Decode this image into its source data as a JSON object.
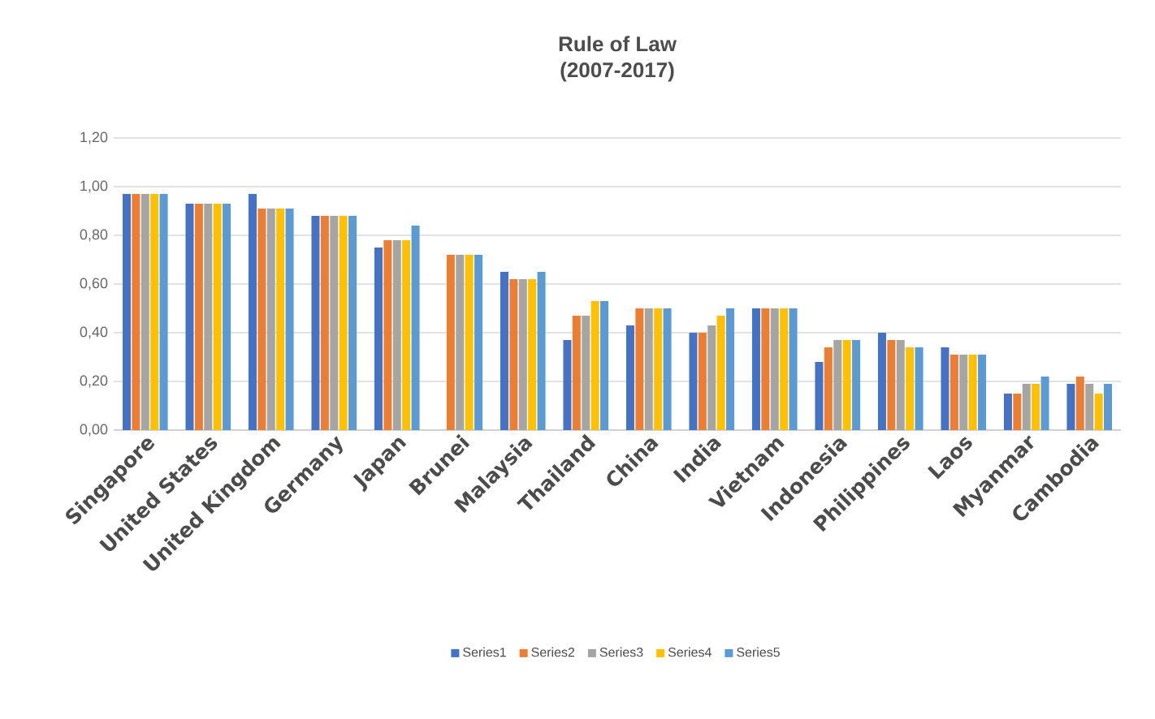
{
  "chart_data": {
    "type": "bar",
    "title": "Rule of Law",
    "subtitle": "(2007-2017)",
    "categories": [
      "Singapore",
      "United States",
      "United Kingdom",
      "Germany",
      "Japan",
      "Brunei",
      "Malaysia",
      "Thailand",
      "China",
      "India",
      "Vietnam",
      "Indonesia",
      "Philippines",
      "Laos",
      "Myanmar",
      "Cambodia"
    ],
    "series": [
      {
        "name": "Series1",
        "color": "#4472c4",
        "values": [
          0.97,
          0.93,
          0.97,
          0.88,
          0.75,
          null,
          0.65,
          0.37,
          0.43,
          0.4,
          0.5,
          0.28,
          0.4,
          0.34,
          0.15,
          0.19
        ]
      },
      {
        "name": "Series2",
        "color": "#ed7d31",
        "values": [
          0.97,
          0.93,
          0.91,
          0.88,
          0.78,
          0.72,
          0.62,
          0.47,
          0.5,
          0.4,
          0.5,
          0.34,
          0.37,
          0.31,
          0.15,
          0.22
        ]
      },
      {
        "name": "Series3",
        "color": "#a5a5a5",
        "values": [
          0.97,
          0.93,
          0.91,
          0.88,
          0.78,
          0.72,
          0.62,
          0.47,
          0.5,
          0.43,
          0.5,
          0.37,
          0.37,
          0.31,
          0.19,
          0.19
        ]
      },
      {
        "name": "Series4",
        "color": "#ffc000",
        "values": [
          0.97,
          0.93,
          0.91,
          0.88,
          0.78,
          0.72,
          0.62,
          0.53,
          0.5,
          0.47,
          0.5,
          0.37,
          0.34,
          0.31,
          0.19,
          0.15
        ]
      },
      {
        "name": "Series5",
        "color": "#5b9bd5",
        "values": [
          0.97,
          0.93,
          0.91,
          0.88,
          0.84,
          0.72,
          0.65,
          0.53,
          0.5,
          0.5,
          0.5,
          0.37,
          0.34,
          0.31,
          0.22,
          0.19
        ]
      }
    ],
    "ylim": [
      0,
      1.2
    ],
    "yticks": [
      {
        "value": 0,
        "label": "0,00"
      },
      {
        "value": 0.2,
        "label": "0,20"
      },
      {
        "value": 0.4,
        "label": "0,40"
      },
      {
        "value": 0.6,
        "label": "0,60"
      },
      {
        "value": 0.8,
        "label": "0,80"
      },
      {
        "value": 1.0,
        "label": "1,00"
      },
      {
        "value": 1.2,
        "label": "1,20"
      }
    ],
    "grid": "y",
    "legend": "bottom"
  }
}
